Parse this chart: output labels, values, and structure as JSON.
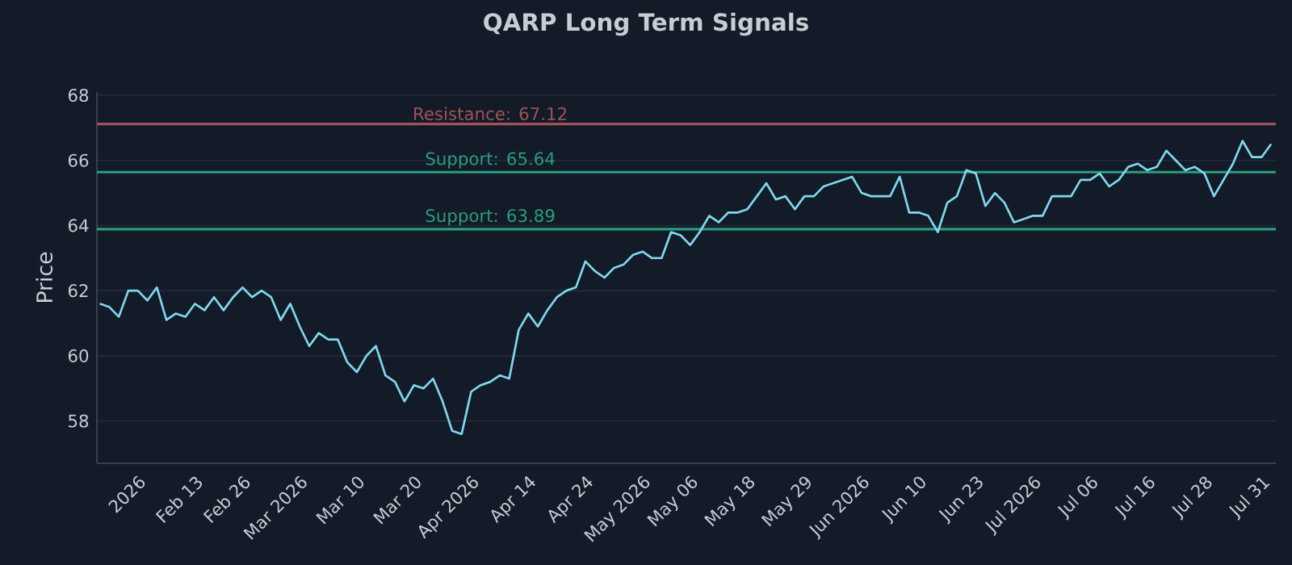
{
  "chart_data": {
    "type": "line",
    "title": "QARP Long Term Signals",
    "ylabel": "Price",
    "categories": [
      null,
      null,
      null,
      null,
      "2026",
      null,
      null,
      null,
      null,
      null,
      "Feb 13",
      null,
      null,
      null,
      null,
      "Feb 26",
      null,
      null,
      null,
      null,
      null,
      "Mar 2026",
      null,
      null,
      null,
      null,
      null,
      "Mar 10",
      null,
      null,
      null,
      null,
      null,
      "Mar 20",
      null,
      null,
      null,
      null,
      null,
      "Apr 2026",
      null,
      null,
      null,
      null,
      null,
      "Apr 14",
      null,
      null,
      null,
      null,
      null,
      "Apr 24",
      null,
      null,
      null,
      null,
      null,
      "May 2026",
      null,
      null,
      null,
      null,
      "May 06",
      null,
      null,
      null,
      null,
      null,
      "May 18",
      null,
      null,
      null,
      null,
      null,
      "May 29",
      null,
      null,
      null,
      null,
      null,
      "Jun 2026",
      null,
      null,
      null,
      null,
      null,
      "Jun 10",
      null,
      null,
      null,
      null,
      null,
      "Jun 23",
      null,
      null,
      null,
      null,
      null,
      "Jul 2026",
      null,
      null,
      null,
      null,
      null,
      "Jul 06",
      null,
      null,
      null,
      null,
      null,
      "Jul 16",
      null,
      null,
      null,
      null,
      null,
      "Jul 28",
      null,
      null,
      null,
      null,
      null,
      "Jul 31",
      null
    ],
    "series": [
      {
        "color": "#7fd8ee",
        "values": [
          61.6,
          61.5,
          61.2,
          62.0,
          62.0,
          61.7,
          62.1,
          61.1,
          61.3,
          61.2,
          61.6,
          61.4,
          61.8,
          61.4,
          61.8,
          62.1,
          61.8,
          62.0,
          61.8,
          61.1,
          61.6,
          60.9,
          60.3,
          60.7,
          60.5,
          60.5,
          59.8,
          59.5,
          60.0,
          60.3,
          59.4,
          59.2,
          58.6,
          59.1,
          59.0,
          59.3,
          58.6,
          57.7,
          57.6,
          58.9,
          59.1,
          59.2,
          59.4,
          59.3,
          60.8,
          61.3,
          60.9,
          61.4,
          61.8,
          62.0,
          62.1,
          62.9,
          62.6,
          62.4,
          62.7,
          62.8,
          63.1,
          63.2,
          63.0,
          63.0,
          63.8,
          63.7,
          63.4,
          63.8,
          64.3,
          64.1,
          64.4,
          64.4,
          64.5,
          64.9,
          65.3,
          64.8,
          64.9,
          64.5,
          64.9,
          64.9,
          65.2,
          65.3,
          65.4,
          65.5,
          65.0,
          64.9,
          64.9,
          64.9,
          65.5,
          64.4,
          64.4,
          64.3,
          63.8,
          64.7,
          64.9,
          65.7,
          65.6,
          64.6,
          65.0,
          64.7,
          64.1,
          64.2,
          64.3,
          64.3,
          64.9,
          64.9,
          64.9,
          65.4,
          65.4,
          65.6,
          65.2,
          65.4,
          65.8,
          65.9,
          65.7,
          65.8,
          66.3,
          66.0,
          65.7,
          65.8,
          65.6,
          64.9,
          65.4,
          65.9,
          66.6,
          66.1,
          66.1,
          66.5
        ]
      }
    ],
    "ylim": [
      56.7,
      68.1
    ],
    "yticks": [
      58,
      60,
      62,
      64,
      66,
      68
    ],
    "grid": "y",
    "ref_lines": [
      {
        "axis": "y",
        "value": 67.12,
        "label": "Resistance: 67.12",
        "color": "#a0525a"
      },
      {
        "axis": "y",
        "value": 65.64,
        "label": "Support: 65.64",
        "color": "#2a9d7c"
      },
      {
        "axis": "y",
        "value": 63.89,
        "label": "Support: 63.89",
        "color": "#2a9d7c"
      }
    ]
  }
}
